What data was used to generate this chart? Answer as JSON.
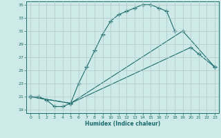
{
  "xlabel": "Humidex (Indice chaleur)",
  "bg_color": "#ceeae8",
  "line_color": "#1a6b6b",
  "grid_color": "#b0c8c8",
  "xlim": [
    -0.5,
    23.5
  ],
  "ylim": [
    18.5,
    35.5
  ],
  "xticks": [
    0,
    1,
    2,
    3,
    4,
    5,
    6,
    7,
    8,
    9,
    10,
    11,
    12,
    13,
    14,
    15,
    16,
    17,
    18,
    19,
    20,
    21,
    22,
    23
  ],
  "yticks": [
    19,
    21,
    23,
    25,
    27,
    29,
    31,
    33,
    35
  ],
  "line1_x": [
    0,
    1,
    2,
    3,
    4,
    5,
    6,
    7,
    8,
    9,
    10,
    11,
    12,
    13,
    14,
    15,
    16,
    17,
    18
  ],
  "line1_y": [
    21,
    21,
    20.5,
    19.5,
    19.5,
    20,
    23,
    25.5,
    28,
    30.5,
    32.5,
    33.5,
    34,
    34.5,
    35,
    35,
    34.5,
    34,
    31
  ],
  "line2_x": [
    0,
    5,
    19,
    23
  ],
  "line2_y": [
    21,
    20,
    31,
    25.5
  ],
  "line3_x": [
    0,
    5,
    20,
    21,
    23
  ],
  "line3_y": [
    21,
    20,
    28.5,
    27.5,
    25.5
  ]
}
